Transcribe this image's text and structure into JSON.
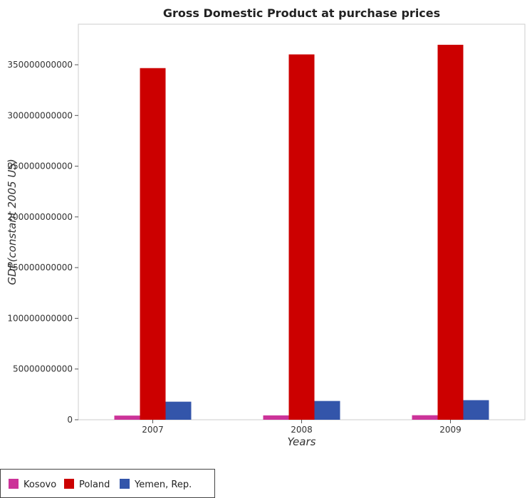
{
  "chart_data": {
    "type": "bar",
    "title": "Gross Domestic Product at purchase prices",
    "xlabel": "Years",
    "ylabel": "GDP(constant 2005 US)",
    "categories": [
      "2007",
      "2008",
      "2009"
    ],
    "series": [
      {
        "name": "Kosovo",
        "color": "#cc3399",
        "values": [
          4100000000.0,
          4300000000.0,
          4450000000.0
        ]
      },
      {
        "name": "Poland",
        "color": "#cc0000",
        "values": [
          346700000000.0,
          360200000000.0,
          369700000000.0
        ]
      },
      {
        "name": "Yemen, Rep.",
        "color": "#3355aa",
        "values": [
          17800000000.0,
          18500000000.0,
          19300000000.0
        ]
      }
    ],
    "ylim": [
      0,
      390000000000
    ],
    "yticks": [
      0,
      50000000000,
      100000000000,
      150000000000,
      200000000000,
      250000000000,
      300000000000,
      350000000000
    ],
    "ytick_labels": [
      "0",
      "50000000000",
      "100000000000",
      "150000000000",
      "200000000000",
      "250000000000",
      "300000000000",
      "350000000000"
    ],
    "grid": false,
    "legend_position": "bottom-left"
  }
}
